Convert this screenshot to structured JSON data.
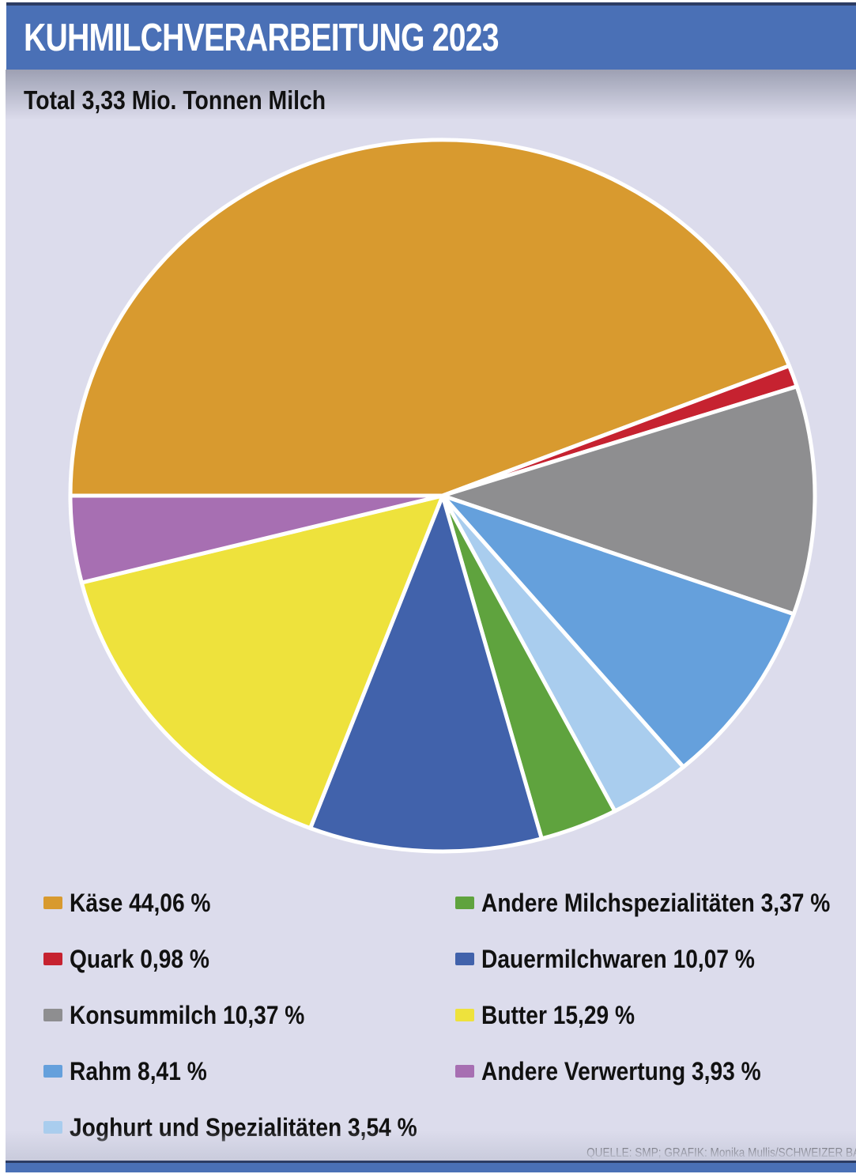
{
  "header": {
    "title": "KUHMILCHVERARBEITUNG 2023",
    "bar_color": "#4a70b6"
  },
  "subtitle": "Total 3,33 Mio. Tonnen Milch",
  "source": "QUELLE: SMP; GRAFIK: Monika Mullis/SCHWEIZER BA",
  "background_color": "#dcdcec",
  "chart_data": {
    "type": "pie",
    "title": "KUHMILCHVERARBEITUNG 2023",
    "subtitle": "Total 3,33 Mio. Tonnen Milch",
    "unit": "%",
    "start_angle_deg": 270,
    "direction": "clockwise",
    "separator_color": "#ffffff",
    "slices": [
      {
        "label": "Käse",
        "value": 44.06,
        "color": "#d89a2f"
      },
      {
        "label": "Quark",
        "value": 0.98,
        "color": "#c62230"
      },
      {
        "label": "Konsummilch",
        "value": 10.37,
        "color": "#8e8e90"
      },
      {
        "label": "Rahm",
        "value": 8.41,
        "color": "#65a0dc"
      },
      {
        "label": "Joghurt und Spezialitäten",
        "value": 3.54,
        "color": "#a9cdee"
      },
      {
        "label": "Andere Milchspezialitäten",
        "value": 3.37,
        "color": "#5fa33e"
      },
      {
        "label": "Dauermilchwaren",
        "value": 10.07,
        "color": "#4162ab"
      },
      {
        "label": "Butter",
        "value": 15.29,
        "color": "#eee23c"
      },
      {
        "label": "Andere Verwertung",
        "value": 3.93,
        "color": "#a76fb2"
      }
    ]
  },
  "legend": {
    "left": [
      {
        "label": "Käse 44,06 %",
        "color": "#d89a2f"
      },
      {
        "label": "Quark 0,98 %",
        "color": "#c62230"
      },
      {
        "label": "Konsummilch 10,37 %",
        "color": "#8e8e90"
      },
      {
        "label": "Rahm 8,41 %",
        "color": "#65a0dc"
      },
      {
        "label": "Joghurt und Spezialitäten 3,54 %",
        "color": "#a9cdee"
      }
    ],
    "right": [
      {
        "label": "Andere Milchspezialitäten 3,37 %",
        "color": "#5fa33e"
      },
      {
        "label": "Dauermilchwaren 10,07 %",
        "color": "#4162ab"
      },
      {
        "label": "Butter 15,29 %",
        "color": "#eee23c"
      },
      {
        "label": "Andere Verwertung 3,93 %",
        "color": "#a76fb2"
      }
    ]
  }
}
